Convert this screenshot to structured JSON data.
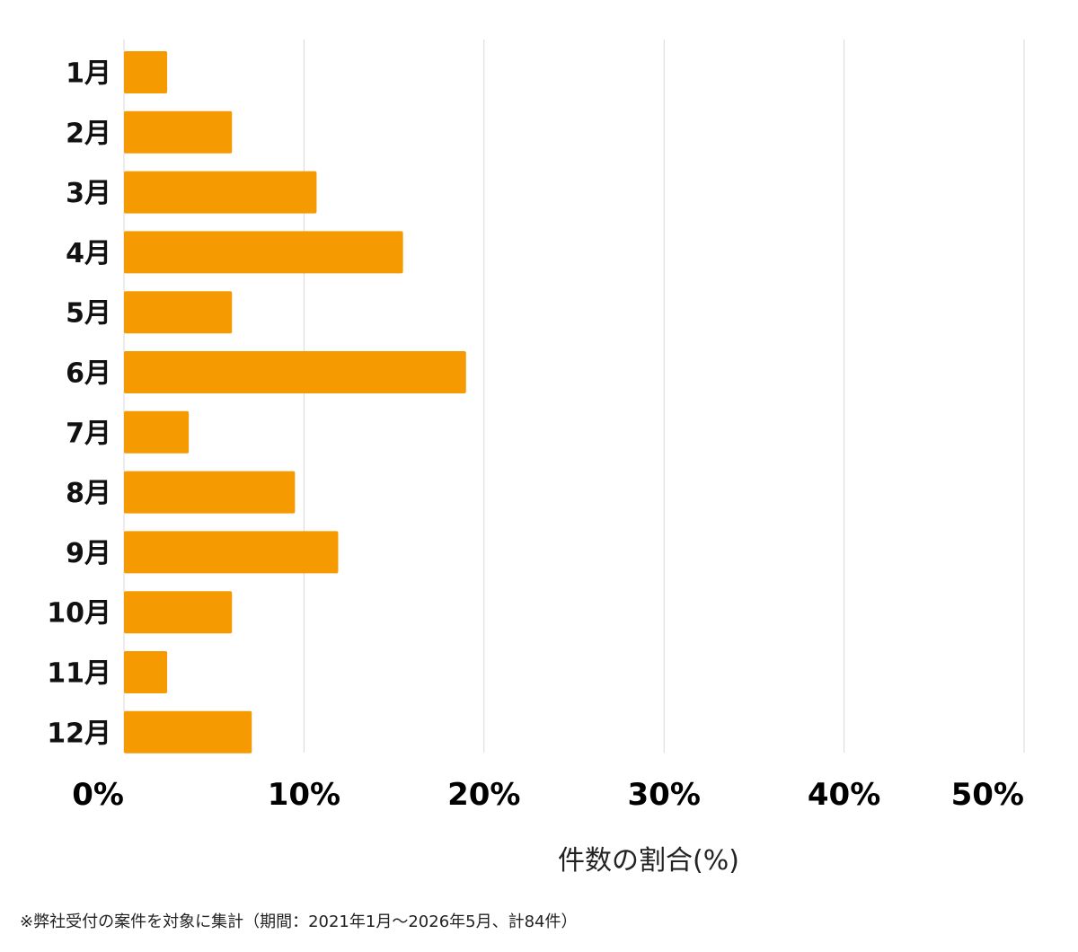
{
  "chart_data": {
    "type": "bar",
    "orientation": "horizontal",
    "categories": [
      "1月",
      "2月",
      "3月",
      "4月",
      "5月",
      "6月",
      "7月",
      "8月",
      "9月",
      "10月",
      "11月",
      "12月"
    ],
    "values": [
      2.4,
      6.0,
      10.7,
      15.5,
      6.0,
      19.0,
      3.6,
      9.5,
      11.9,
      6.0,
      2.4,
      7.1
    ],
    "xlim": [
      0,
      50
    ],
    "xticks": [
      "0%",
      "10%",
      "20%",
      "30%",
      "40%",
      "50%"
    ],
    "xlabel": "件数の割合(%)",
    "title": "",
    "grid": "vertical",
    "bar_color": "#F59A00",
    "grid_color": "#D9D9D9"
  },
  "footnote": "※弊社受付の案件を対象に集計（期間：2021年1月〜2026年5月、計84件）"
}
